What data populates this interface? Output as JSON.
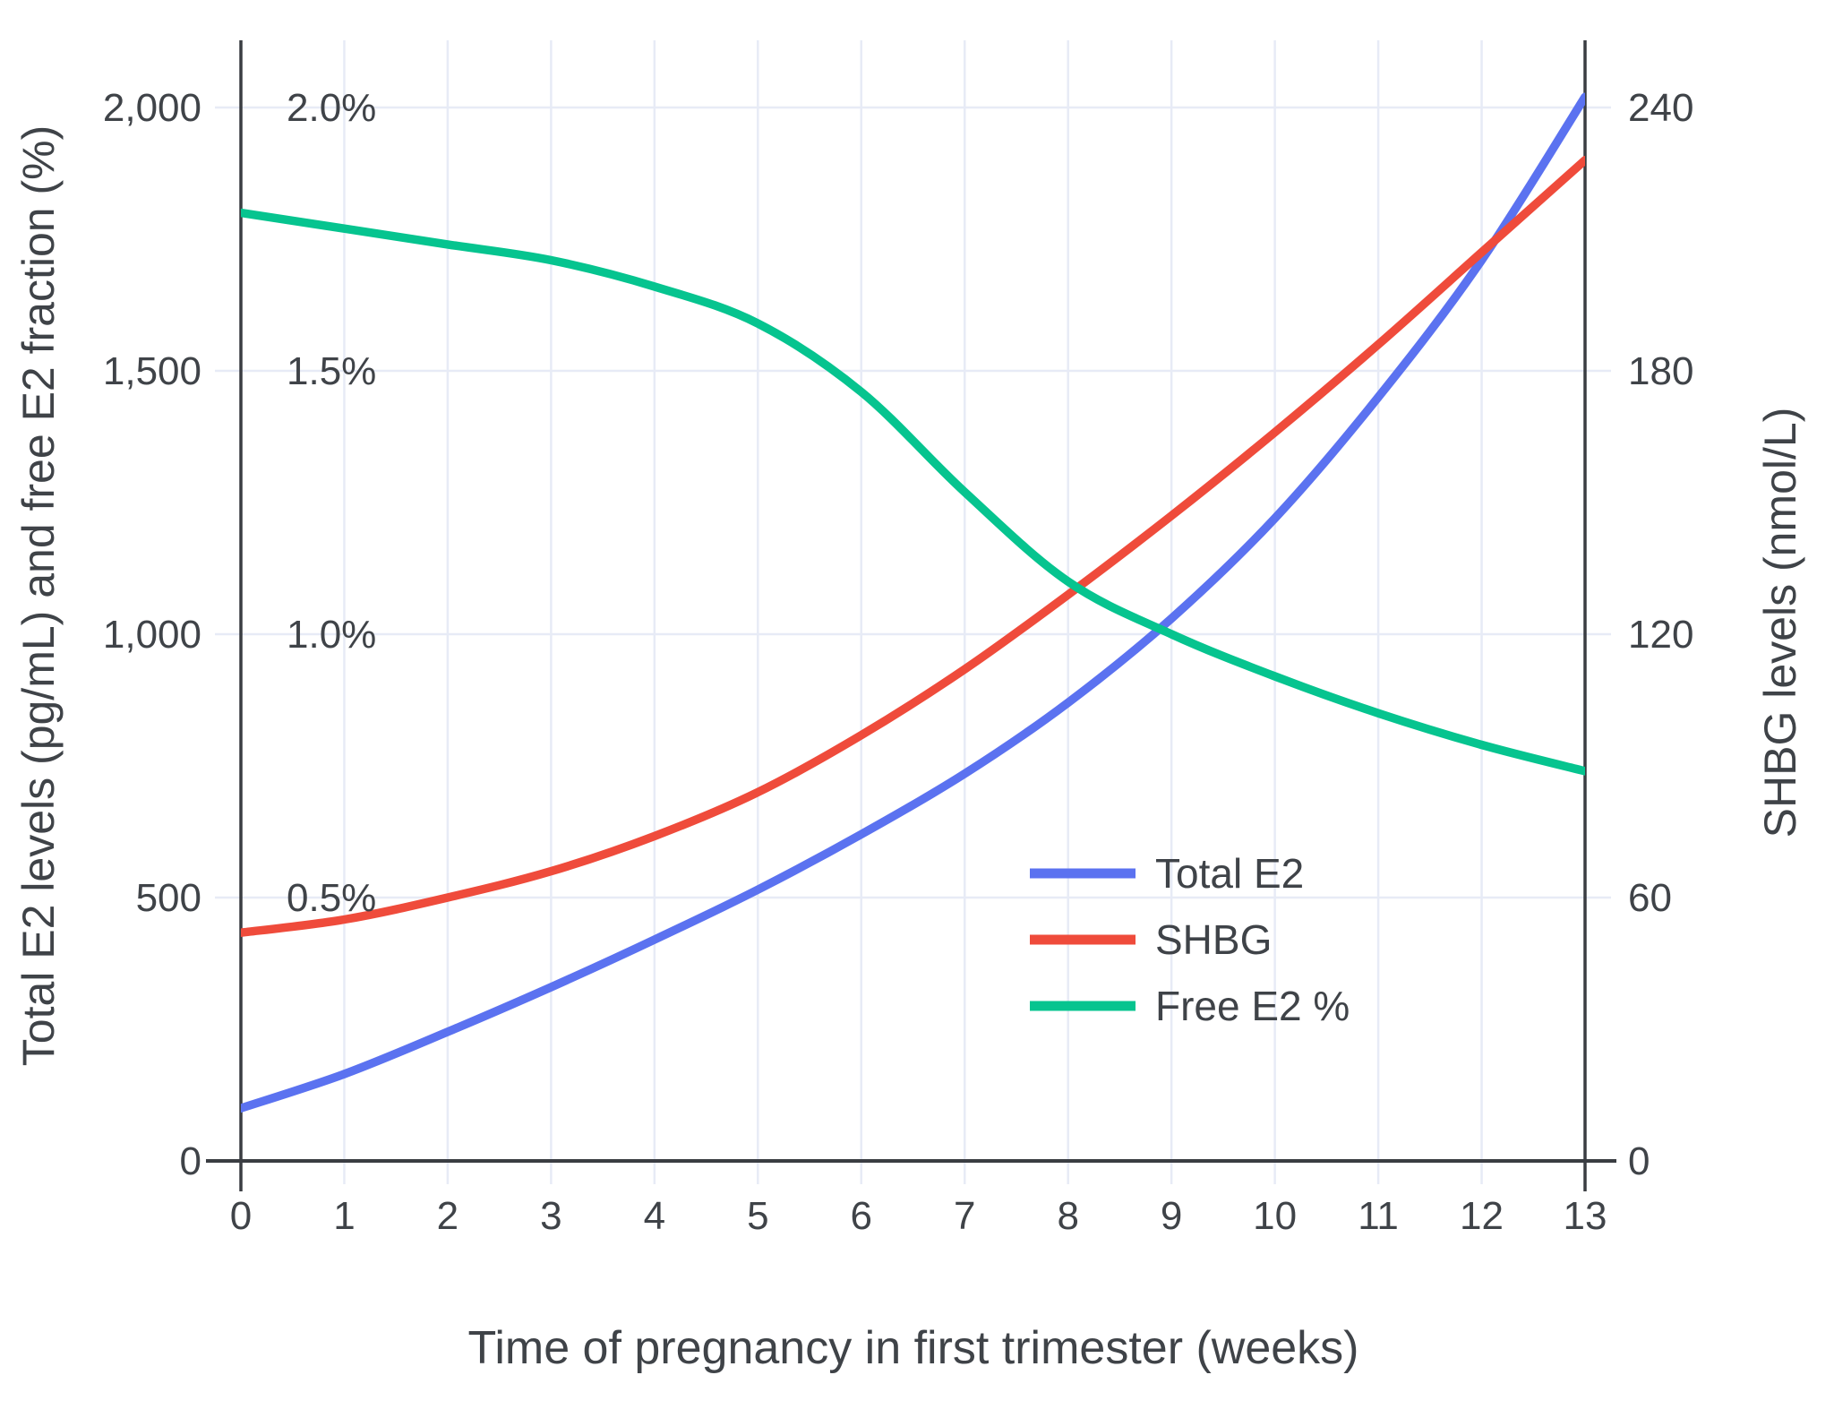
{
  "chart_data": {
    "type": "line",
    "title": "",
    "xlabel": "Time of pregnancy in first trimester (weeks)",
    "x": [
      0,
      1,
      2,
      3,
      4,
      5,
      6,
      7,
      8,
      9,
      10,
      11,
      12,
      13
    ],
    "x_tick_labels": [
      "0",
      "1",
      "2",
      "3",
      "4",
      "5",
      "6",
      "7",
      "8",
      "9",
      "10",
      "11",
      "12",
      "13"
    ],
    "series": [
      {
        "name": "Total E2",
        "axis": "e2",
        "color": "#5b72f0",
        "values": [
          100,
          165,
          245,
          330,
          420,
          515,
          620,
          735,
          870,
          1030,
          1220,
          1450,
          1710,
          2020
        ]
      },
      {
        "name": "SHBG",
        "axis": "shbg",
        "color": "#ef4b3b",
        "values": [
          52,
          55,
          60,
          66,
          74,
          84,
          97,
          112,
          129,
          147,
          166,
          186,
          207,
          228
        ]
      },
      {
        "name": "Free E2 %",
        "axis": "pct",
        "color": "#06c48f",
        "values": [
          1.8,
          1.77,
          1.74,
          1.71,
          1.66,
          1.59,
          1.46,
          1.27,
          1.1,
          1.0,
          0.92,
          0.85,
          0.79,
          0.74
        ]
      }
    ],
    "left_axis": {
      "title": "Total E2 levels (pg/mL) and free E2 fraction (%)",
      "tick_values": [
        0,
        500,
        1000,
        1500,
        2000
      ],
      "tick_labels": [
        "0",
        "500",
        "1,000",
        "1,500",
        "2,000"
      ],
      "range": [
        0,
        2127
      ]
    },
    "right_axis": {
      "title": "SHBG levels (nmol/L)",
      "tick_values": [
        0,
        60,
        120,
        180,
        240
      ],
      "tick_labels": [
        "0",
        "60",
        "120",
        "180",
        "240"
      ],
      "range": [
        0,
        255
      ]
    },
    "pct_annotations": [
      {
        "value": 0.5,
        "label": "0.5%"
      },
      {
        "value": 1.0,
        "label": "1.0%"
      },
      {
        "value": 1.5,
        "label": "1.5%"
      },
      {
        "value": 2.0,
        "label": "2.0%"
      }
    ],
    "x_range": [
      0,
      13
    ],
    "grid": true,
    "legend_position": "center-right",
    "colors": {
      "axis_line": "#3a3d42",
      "grid_line": "#e7ebf6",
      "text": "#3f4348",
      "background": "#ffffff"
    }
  },
  "legend": {
    "items": [
      {
        "label": "Total E2"
      },
      {
        "label": "SHBG"
      },
      {
        "label": "Free E2 %"
      }
    ]
  }
}
